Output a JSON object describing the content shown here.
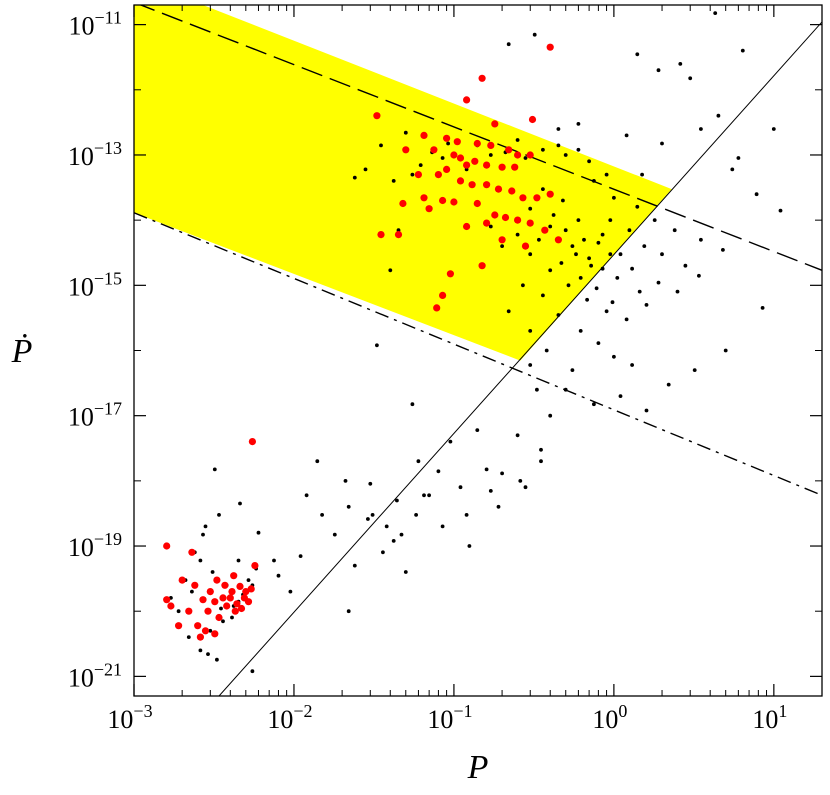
{
  "chart_data": {
    "type": "scatter",
    "title": "",
    "xlabel": "P",
    "ylabel": "Ṗ",
    "xscale": "log",
    "yscale": "log",
    "xlim": [
      0.001,
      20
    ],
    "ylim": [
      5e-22,
      2e-11
    ],
    "x_ticks": [
      {
        "base": "10",
        "exp": "−3",
        "value": 0.001
      },
      {
        "base": "10",
        "exp": "−2",
        "value": 0.01
      },
      {
        "base": "10",
        "exp": "−1",
        "value": 0.1
      },
      {
        "base": "10",
        "exp": "0",
        "value": 1
      },
      {
        "base": "10",
        "exp": "1",
        "value": 10
      }
    ],
    "y_ticks": [
      {
        "base": "10",
        "exp": "−11",
        "value": 1e-11
      },
      {
        "base": "10",
        "exp": "−13",
        "value": 1e-13
      },
      {
        "base": "10",
        "exp": "−15",
        "value": 1e-15
      },
      {
        "base": "10",
        "exp": "−17",
        "value": 1e-17
      },
      {
        "base": "10",
        "exp": "−19",
        "value": 1e-19
      },
      {
        "base": "10",
        "exp": "−21",
        "value": 1e-21
      }
    ],
    "shaded_region": {
      "color": "#ffff00",
      "polygon": [
        [
          0.001,
          2e-11
        ],
        [
          0.0027,
          2e-11
        ],
        [
          2.3,
          3e-14
        ],
        [
          0.26,
          7e-17
        ],
        [
          0.001,
          1.3e-14
        ]
      ]
    },
    "reference_lines": [
      {
        "name": "dashed-upper",
        "style": "dashed",
        "points": [
          [
            0.001,
            2.2e-11
          ],
          [
            20,
            1.7e-15
          ]
        ]
      },
      {
        "name": "dashdot-lower",
        "style": "dashdot",
        "points": [
          [
            0.001,
            1.3e-14
          ],
          [
            20,
            6e-19
          ]
        ]
      },
      {
        "name": "solid-diagonal",
        "style": "solid",
        "points": [
          [
            0.0034,
            5e-22
          ],
          [
            20,
            1.1e-11
          ]
        ]
      }
    ],
    "series": [
      {
        "name": "black-pulsars",
        "color": "#000000",
        "marker_size": 1.9,
        "points": [
          [
            4.3,
            1.5e-11
          ],
          [
            0.32,
            7e-12
          ],
          [
            0.6,
            3e-13
          ],
          [
            1.2,
            2e-13
          ],
          [
            2,
            1.5e-13
          ],
          [
            3.5,
            2.5e-13
          ],
          [
            0.9,
            5e-14
          ],
          [
            1.5,
            5e-14
          ],
          [
            0.7,
            8e-14
          ],
          [
            0.5,
            1e-13
          ],
          [
            0.45,
            1.4e-13
          ],
          [
            0.36,
            1.2e-13
          ],
          [
            0.28,
            9e-14
          ],
          [
            0.25,
            1.7e-13
          ],
          [
            0.21,
            1.1e-13
          ],
          [
            0.17,
            1e-13
          ],
          [
            0.14,
            1.4e-13
          ],
          [
            0.12,
            6e-14
          ],
          [
            0.092,
            1.5e-13
          ],
          [
            0.085,
            9e-14
          ],
          [
            0.073,
            1.1e-13
          ],
          [
            0.062,
            7e-14
          ],
          [
            0.055,
            5e-14
          ],
          [
            0.05,
            2.2e-13
          ],
          [
            0.042,
            4e-14
          ],
          [
            0.035,
            1.4e-13
          ],
          [
            0.028,
            6e-14
          ],
          [
            0.024,
            4.5e-14
          ],
          [
            0.045,
            7e-15
          ],
          [
            0.04,
            1.7e-15
          ],
          [
            0.033,
            1.2e-16
          ],
          [
            0.055,
            1.5e-17
          ],
          [
            0.095,
            4e-18
          ],
          [
            0.065,
            6e-19
          ],
          [
            0.12,
            3e-19
          ],
          [
            0.2,
            1.3e-18
          ],
          [
            0.35,
            3e-18
          ],
          [
            0.5,
            2.5e-17
          ],
          [
            0.75,
            1.5e-17
          ],
          [
            1.1,
            2e-17
          ],
          [
            1.6,
            1.2e-17
          ],
          [
            2.2,
            3e-17
          ],
          [
            3.2,
            5e-17
          ],
          [
            5,
            1e-16
          ],
          [
            8.5,
            4.5e-16
          ],
          [
            11,
            1.4e-14
          ],
          [
            10,
            2.5e-13
          ],
          [
            6,
            9e-14
          ],
          [
            7.8,
            2.5e-14
          ],
          [
            5.5,
            6e-14
          ],
          [
            4.5,
            4e-13
          ],
          [
            3,
            1.5e-12
          ],
          [
            2.6,
            2.5e-12
          ],
          [
            1.9,
            2e-12
          ],
          [
            1.4,
            3.5e-12
          ],
          [
            6.4,
            4e-12
          ],
          [
            0.22,
            5e-12
          ],
          [
            0.45,
            2.5e-13
          ],
          [
            0.6,
            1.2e-13
          ],
          [
            0.75,
            4e-14
          ],
          [
            1,
            2.2e-14
          ],
          [
            1.4,
            1.6e-14
          ],
          [
            1.8,
            1e-14
          ],
          [
            2.4,
            7e-15
          ],
          [
            3.5,
            5e-15
          ],
          [
            4.8,
            3.5e-15
          ],
          [
            0.85,
            6e-15
          ],
          [
            0.6,
            1e-14
          ],
          [
            0.48,
            2e-14
          ],
          [
            0.36,
            3e-14
          ],
          [
            0.3,
            1.5e-14
          ],
          [
            0.55,
            4e-15
          ],
          [
            0.7,
            2.6e-15
          ],
          [
            1.1,
            3e-15
          ],
          [
            1.3,
            1.8e-15
          ],
          [
            1.9,
            1.1e-15
          ],
          [
            2.5,
            8e-16
          ],
          [
            3.4,
            1.4e-15
          ],
          [
            1.6,
            5e-16
          ],
          [
            1.2,
            3e-16
          ],
          [
            0.9,
            4e-16
          ],
          [
            0.68,
            6e-16
          ],
          [
            0.52,
            1e-15
          ],
          [
            0.4,
            1.7e-15
          ],
          [
            0.3,
            3e-15
          ],
          [
            0.25,
            6e-15
          ],
          [
            0.2,
            4e-15
          ],
          [
            0.17,
            8e-15
          ],
          [
            0.45,
            3.5e-16
          ],
          [
            0.62,
            2e-16
          ],
          [
            0.8,
            1.3e-16
          ],
          [
            1,
            8e-17
          ],
          [
            1.3,
            6e-17
          ],
          [
            0.38,
            1e-16
          ],
          [
            0.3,
            2e-16
          ],
          [
            0.22,
            4e-16
          ],
          [
            0.55,
            5e-17
          ],
          [
            0.3,
            6e-17
          ],
          [
            0.4,
            8e-15
          ],
          [
            0.5,
            7e-15
          ],
          [
            0.65,
            5e-15
          ],
          [
            0.8,
            4.5e-15
          ],
          [
            0.95,
            3e-15
          ],
          [
            0.58,
            3e-15
          ],
          [
            0.72,
            2e-15
          ],
          [
            0.47,
            2.2e-15
          ],
          [
            0.85,
            1.8e-15
          ],
          [
            1.05,
            1.3e-15
          ],
          [
            0.62,
            1.3e-15
          ],
          [
            0.34,
            5e-15
          ],
          [
            0.42,
            1.2e-14
          ],
          [
            0.95,
            1e-14
          ],
          [
            1.25,
            7e-15
          ],
          [
            1.55,
            4e-15
          ],
          [
            2,
            3e-15
          ],
          [
            2.8,
            2e-15
          ],
          [
            0.27,
            1e-15
          ],
          [
            0.36,
            7e-16
          ],
          [
            0.78,
            9e-16
          ],
          [
            1.45,
            8e-16
          ],
          [
            0.98,
            5.5e-16
          ],
          [
            0.024,
            5e-20
          ],
          [
            0.022,
            1e-20
          ],
          [
            0.038,
            2e-19
          ],
          [
            0.018,
            1.5e-19
          ],
          [
            0.015,
            3e-19
          ],
          [
            0.012,
            6e-19
          ],
          [
            0.011,
            7e-20
          ],
          [
            0.0095,
            2e-20
          ],
          [
            0.0075,
            6e-20
          ],
          [
            0.008,
            3.5e-20
          ],
          [
            0.0055,
            1.2e-21
          ],
          [
            0.0032,
            1.5e-18
          ],
          [
            0.006,
            1.6e-19
          ],
          [
            0.0042,
            1.2e-20
          ],
          [
            0.0045,
            6e-20
          ],
          [
            0.0052,
            3e-20
          ],
          [
            0.0058,
            4.5e-20
          ],
          [
            0.0048,
            1.8e-20
          ],
          [
            0.0035,
            1.1e-20
          ],
          [
            0.0029,
            2.2e-21
          ],
          [
            0.0033,
            1.8e-21
          ],
          [
            0.0038,
            2.5e-20
          ],
          [
            0.0027,
            1.5e-19
          ],
          [
            0.0024,
            8e-20
          ],
          [
            0.0021,
            3e-20
          ],
          [
            0.0019,
            1e-20
          ],
          [
            0.0017,
            1.6e-20
          ],
          [
            0.0022,
            4e-21
          ],
          [
            0.0026,
            2.5e-21
          ],
          [
            0.003,
            5e-21
          ],
          [
            0.0036,
            7e-21
          ],
          [
            0.0041,
            8e-21
          ],
          [
            0.0045,
            1.4e-20
          ],
          [
            0.005,
            2e-20
          ],
          [
            0.0055,
            2.5e-20
          ],
          [
            0.0046,
            4.5e-19
          ],
          [
            0.0034,
            3e-19
          ],
          [
            0.0028,
            2e-19
          ],
          [
            0.0031,
            4e-20
          ],
          [
            0.0026,
            6e-20
          ],
          [
            0.0023,
            2e-20
          ],
          [
            0.014,
            2e-18
          ],
          [
            0.021,
            1e-18
          ],
          [
            0.03,
            9e-19
          ],
          [
            0.044,
            5e-19
          ],
          [
            0.06,
            2e-18
          ],
          [
            0.08,
            1.4e-18
          ],
          [
            0.11,
            8e-19
          ],
          [
            0.14,
            6e-18
          ],
          [
            0.16,
            1.5e-18
          ],
          [
            0.19,
            4e-19
          ],
          [
            0.26,
            1e-18
          ],
          [
            0.33,
            2.5e-17
          ],
          [
            0.4,
            1e-17
          ],
          [
            0.25,
            5e-18
          ],
          [
            0.031,
            3e-19
          ],
          [
            0.042,
            1.2e-19
          ],
          [
            0.036,
            8e-20
          ],
          [
            0.05,
            4e-20
          ],
          [
            0.085,
            2e-19
          ],
          [
            0.125,
            1e-19
          ],
          [
            0.17,
            7e-19
          ],
          [
            0.07,
            6e-19
          ],
          [
            0.047,
            1.5e-19
          ],
          [
            0.058,
            3e-19
          ],
          [
            0.35,
            2e-18
          ],
          [
            0.28,
            8e-19
          ],
          [
            0.022,
            4e-19
          ],
          [
            0.029,
            2.6e-19
          ]
        ]
      },
      {
        "name": "red-pulsars",
        "color": "#ff0000",
        "marker_size": 3.6,
        "points": [
          [
            0.4,
            4.5e-12
          ],
          [
            0.15,
            1.5e-12
          ],
          [
            0.12,
            7e-13
          ],
          [
            0.033,
            4e-13
          ],
          [
            0.31,
            3.5e-13
          ],
          [
            0.18,
            3e-13
          ],
          [
            0.065,
            2e-13
          ],
          [
            0.09,
            1.8e-13
          ],
          [
            0.105,
            1.6e-13
          ],
          [
            0.14,
            1.5e-13
          ],
          [
            0.17,
            1.4e-13
          ],
          [
            0.05,
            1.2e-13
          ],
          [
            0.075,
            1.2e-13
          ],
          [
            0.1,
            1e-13
          ],
          [
            0.11,
            9e-14
          ],
          [
            0.135,
            8e-14
          ],
          [
            0.22,
            1.2e-13
          ],
          [
            0.25,
            1e-13
          ],
          [
            0.3,
            1e-13
          ],
          [
            0.12,
            7e-14
          ],
          [
            0.16,
            7e-14
          ],
          [
            0.2,
            6.5e-14
          ],
          [
            0.24,
            6.5e-14
          ],
          [
            0.09,
            6e-14
          ],
          [
            0.06,
            5e-14
          ],
          [
            0.08,
            5e-14
          ],
          [
            0.11,
            4e-14
          ],
          [
            0.13,
            3.5e-14
          ],
          [
            0.16,
            3.5e-14
          ],
          [
            0.19,
            3e-14
          ],
          [
            0.23,
            2.8e-14
          ],
          [
            0.27,
            2.2e-14
          ],
          [
            0.33,
            2.2e-14
          ],
          [
            0.4,
            2.5e-14
          ],
          [
            0.065,
            2.2e-14
          ],
          [
            0.085,
            2e-14
          ],
          [
            0.1,
            1.9e-14
          ],
          [
            0.14,
            1.8e-14
          ],
          [
            0.048,
            1.8e-14
          ],
          [
            0.07,
            1.5e-14
          ],
          [
            0.18,
            1.2e-14
          ],
          [
            0.21,
            1.1e-14
          ],
          [
            0.25,
            1e-14
          ],
          [
            0.3,
            9e-15
          ],
          [
            0.16,
            9e-15
          ],
          [
            0.12,
            8e-15
          ],
          [
            0.045,
            6e-15
          ],
          [
            0.035,
            6e-15
          ],
          [
            0.2,
            5e-15
          ],
          [
            0.28,
            4e-15
          ],
          [
            0.37,
            7e-15
          ],
          [
            0.45,
            5e-15
          ],
          [
            0.15,
            2e-15
          ],
          [
            0.095,
            1.5e-15
          ],
          [
            0.085,
            7e-16
          ],
          [
            0.078,
            4.5e-16
          ],
          [
            0.0055,
            4e-18
          ],
          [
            0.0016,
            1e-19
          ],
          [
            0.0023,
            8e-20
          ],
          [
            0.0057,
            5e-20
          ],
          [
            0.002,
            3e-20
          ],
          [
            0.0016,
            1.5e-20
          ],
          [
            0.0017,
            1.2e-20
          ],
          [
            0.0019,
            6e-21
          ],
          [
            0.0022,
            1e-20
          ],
          [
            0.0024,
            2.5e-20
          ],
          [
            0.0025,
            6e-21
          ],
          [
            0.0027,
            1.5e-20
          ],
          [
            0.0028,
            5e-21
          ],
          [
            0.0029,
            1e-20
          ],
          [
            0.003,
            2e-20
          ],
          [
            0.0032,
            1.4e-20
          ],
          [
            0.0034,
            8e-21
          ],
          [
            0.0036,
            1.6e-20
          ],
          [
            0.0037,
            2.5e-20
          ],
          [
            0.0038,
            1.2e-20
          ],
          [
            0.004,
            1.6e-20
          ],
          [
            0.0041,
            2e-20
          ],
          [
            0.0043,
            1e-20
          ],
          [
            0.0044,
            1.3e-20
          ],
          [
            0.0046,
            2.4e-20
          ],
          [
            0.0047,
            1.1e-20
          ],
          [
            0.0049,
            1.6e-20
          ],
          [
            0.005,
            2e-20
          ],
          [
            0.0052,
            1.4e-20
          ],
          [
            0.0054,
            2.2e-20
          ],
          [
            0.0033,
            3e-20
          ],
          [
            0.0042,
            3.5e-20
          ],
          [
            0.0026,
            4e-21
          ],
          [
            0.0032,
            4.5e-21
          ]
        ]
      }
    ]
  }
}
